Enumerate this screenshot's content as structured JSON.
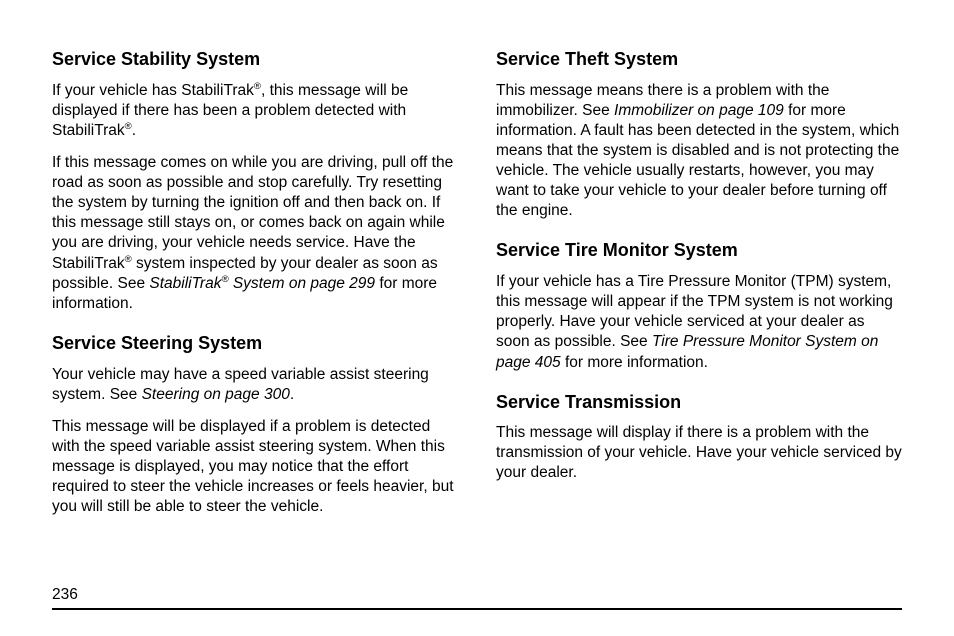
{
  "left": {
    "h1": "Service Stability System",
    "p1a": "If your vehicle has StabiliTrak",
    "p1b": ", this message will be displayed if there has been a problem detected with StabiliTrak",
    "p1c": ".",
    "p2a": "If this message comes on while you are driving, pull off the road as soon as possible and stop carefully. Try resetting the system by turning the ignition off and then back on. If this message still stays on, or comes back on again while you are driving, your vehicle needs service. Have the StabiliTrak",
    "p2b": " system inspected by your dealer as soon as possible. See ",
    "p2_em_a": "StabiliTrak",
    "p2_em_b": " System on page 299",
    "p2c": " for more information.",
    "h2": "Service Steering System",
    "p3a": "Your vehicle may have a speed variable assist steering system. See ",
    "p3_em": "Steering on page 300",
    "p3b": ".",
    "p4": "This message will be displayed if a problem is detected with the speed variable assist steering system. When this message is displayed, you may notice that the effort required to steer the vehicle increases or feels heavier, but you will still be able to steer the vehicle."
  },
  "right": {
    "h1": "Service Theft System",
    "p1a": "This message means there is a problem with the immobilizer. See ",
    "p1_em": "Immobilizer on page 109",
    "p1b": " for more information. A fault has been detected in the system, which means that the system is disabled and is not protecting the vehicle. The vehicle usually restarts, however, you may want to take your vehicle to your dealer before turning off the engine.",
    "h2": "Service Tire Monitor System",
    "p2a": "If your vehicle has a Tire Pressure Monitor (TPM) system, this message will appear if the TPM system is not working properly. Have your vehicle serviced at your dealer as soon as possible. See ",
    "p2_em": "Tire Pressure Monitor System on page 405",
    "p2b": " for more information.",
    "h3": "Service Transmission",
    "p3": "This message will display if there is a problem with the transmission of your vehicle. Have your vehicle serviced by your dealer."
  },
  "reg": "®",
  "page_number": "236"
}
